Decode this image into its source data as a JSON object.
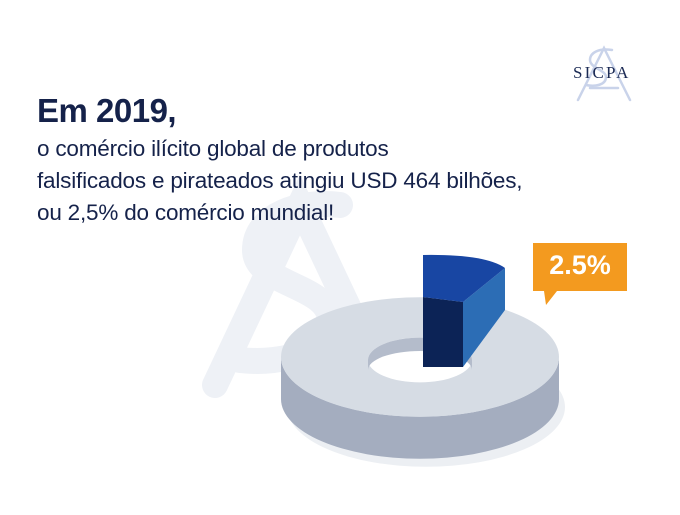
{
  "heading": {
    "title": "Em 2019,",
    "lines": [
      "o comércio ilícito global de produtos",
      "falsificados e pirateados atingiu USD 464 bilhões,",
      "ou 2,5% do comércio mundial!"
    ]
  },
  "brand": {
    "name": "SICPA",
    "monogram": "SA"
  },
  "colors": {
    "text": "#15224a",
    "accent": "#f39a1f",
    "slice_top": "#1846a3",
    "slice_side": "#0c2356",
    "ring_top": "#d6dce4",
    "ring_side": "#a4adbf"
  },
  "chart_data": {
    "type": "pie",
    "style": "3d-donut",
    "slices": [
      {
        "label": "2.5%",
        "value": 2.5,
        "highlighted": true
      },
      {
        "label": "",
        "value": 97.5
      }
    ],
    "callout": "2.5%"
  }
}
